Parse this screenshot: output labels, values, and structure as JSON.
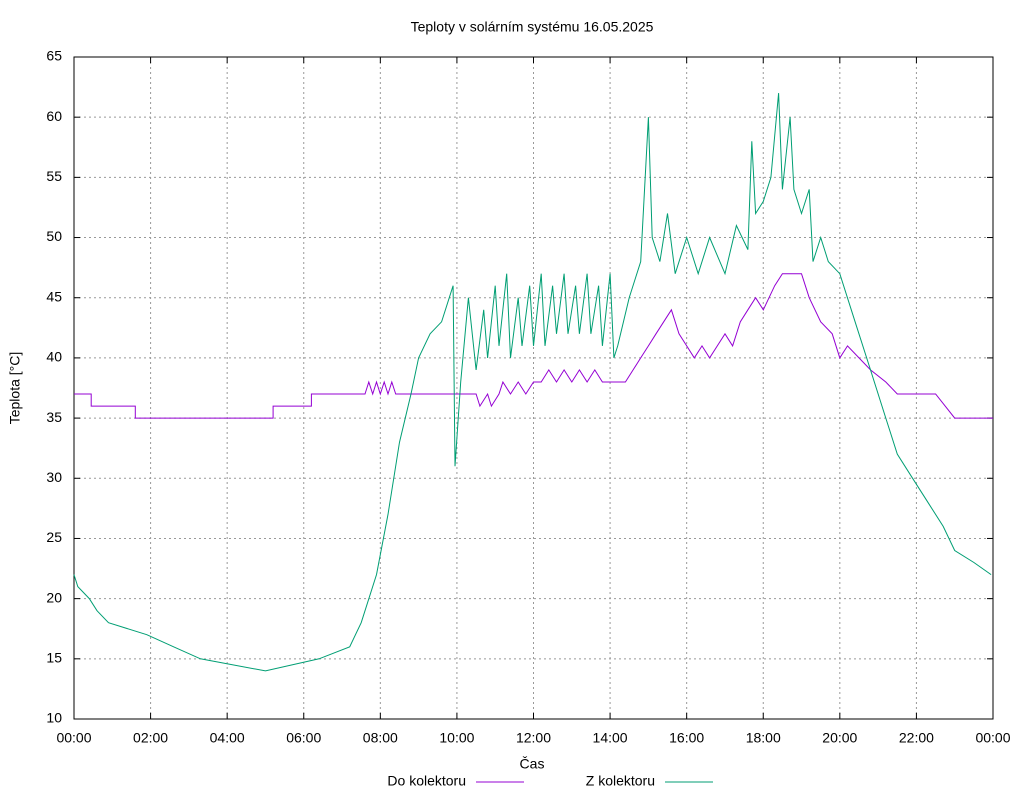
{
  "chart_data": {
    "type": "line",
    "title": "Teploty v solárním systému 16.05.2025",
    "xlabel": "Čas",
    "ylabel": "Teplota [°C]",
    "xlim": [
      0,
      24
    ],
    "ylim": [
      10,
      65
    ],
    "xticks": [
      {
        "value": 0,
        "label": "00:00"
      },
      {
        "value": 2,
        "label": "02:00"
      },
      {
        "value": 4,
        "label": "04:00"
      },
      {
        "value": 6,
        "label": "06:00"
      },
      {
        "value": 8,
        "label": "08:00"
      },
      {
        "value": 10,
        "label": "10:00"
      },
      {
        "value": 12,
        "label": "12:00"
      },
      {
        "value": 14,
        "label": "14:00"
      },
      {
        "value": 16,
        "label": "16:00"
      },
      {
        "value": 18,
        "label": "18:00"
      },
      {
        "value": 20,
        "label": "20:00"
      },
      {
        "value": 22,
        "label": "22:00"
      },
      {
        "value": 24,
        "label": "00:00"
      }
    ],
    "yticks": [
      10,
      15,
      20,
      25,
      30,
      35,
      40,
      45,
      50,
      55,
      60,
      65
    ],
    "grid": true,
    "legend": "bottom",
    "series": [
      {
        "name": "Do kolektoru",
        "color": "#9400d3",
        "x": [
          0,
          0.45,
          0.45,
          1.6,
          1.6,
          5.2,
          5.2,
          6.2,
          6.2,
          7.6,
          7.7,
          7.8,
          7.9,
          8.0,
          8.1,
          8.2,
          8.3,
          8.4,
          8.6,
          10.5,
          10.6,
          10.8,
          10.9,
          11.1,
          11.2,
          11.4,
          11.6,
          11.8,
          12.0,
          12.2,
          12.4,
          12.6,
          12.8,
          13.0,
          13.2,
          13.4,
          13.6,
          13.8,
          14.0,
          14.4,
          14.6,
          14.8,
          15.0,
          15.2,
          15.4,
          15.6,
          15.8,
          16.0,
          16.2,
          16.4,
          16.6,
          16.8,
          17.0,
          17.2,
          17.4,
          17.6,
          17.8,
          18.0,
          18.3,
          18.5,
          19.0,
          19.2,
          19.5,
          19.8,
          20.0,
          20.2,
          20.5,
          20.8,
          21.2,
          21.5,
          22.5,
          23.0,
          24
        ],
        "values": [
          37,
          37,
          36,
          36,
          35,
          35,
          36,
          36,
          37,
          37,
          38,
          37,
          38,
          37,
          38,
          37,
          38,
          37,
          37,
          37,
          36,
          37,
          36,
          37,
          38,
          37,
          38,
          37,
          38,
          38,
          39,
          38,
          39,
          38,
          39,
          38,
          39,
          38,
          38,
          38,
          39,
          40,
          41,
          42,
          43,
          44,
          42,
          41,
          40,
          41,
          40,
          41,
          42,
          41,
          43,
          44,
          45,
          44,
          46,
          47,
          47,
          45,
          43,
          42,
          40,
          41,
          40,
          39,
          38,
          37,
          37,
          35,
          35
        ]
      },
      {
        "name": "Z kolektoru",
        "color": "#009e73",
        "x": [
          0,
          0.1,
          0.4,
          0.6,
          0.9,
          1.9,
          2.6,
          3.3,
          5.0,
          6.4,
          7.2,
          7.5,
          7.9,
          8.2,
          8.5,
          8.8,
          9.0,
          9.3,
          9.6,
          9.9,
          9.95,
          10.1,
          10.3,
          10.5,
          10.7,
          10.8,
          11.0,
          11.1,
          11.3,
          11.4,
          11.6,
          11.7,
          11.9,
          12.0,
          12.2,
          12.3,
          12.5,
          12.6,
          12.8,
          12.9,
          13.1,
          13.2,
          13.4,
          13.5,
          13.7,
          13.8,
          14.0,
          14.1,
          14.2,
          14.5,
          14.8,
          15.0,
          15.1,
          15.3,
          15.5,
          15.7,
          16.0,
          16.3,
          16.6,
          17.0,
          17.3,
          17.6,
          17.7,
          17.8,
          18.0,
          18.2,
          18.4,
          18.5,
          18.7,
          18.8,
          19.0,
          19.2,
          19.3,
          19.5,
          19.7,
          20.0,
          20.4,
          20.8,
          21.2,
          21.5,
          21.9,
          22.3,
          22.7,
          23.0,
          23.5,
          23.95
        ],
        "values": [
          22,
          21,
          20,
          19,
          18,
          17,
          16,
          15,
          14,
          15,
          16,
          18,
          22,
          27,
          33,
          37,
          40,
          42,
          43,
          46,
          31,
          38,
          45,
          39,
          44,
          40,
          46,
          41,
          47,
          40,
          45,
          41,
          46,
          41,
          47,
          41,
          46,
          42,
          47,
          42,
          46,
          42,
          47,
          42,
          46,
          41,
          47,
          40,
          41,
          45,
          48,
          60,
          50,
          48,
          52,
          47,
          50,
          47,
          50,
          47,
          51,
          49,
          58,
          52,
          53,
          55,
          62,
          54,
          60,
          54,
          52,
          54,
          48,
          50,
          48,
          47,
          43,
          39,
          35,
          32,
          30,
          28,
          26,
          24,
          23,
          22
        ]
      }
    ]
  }
}
